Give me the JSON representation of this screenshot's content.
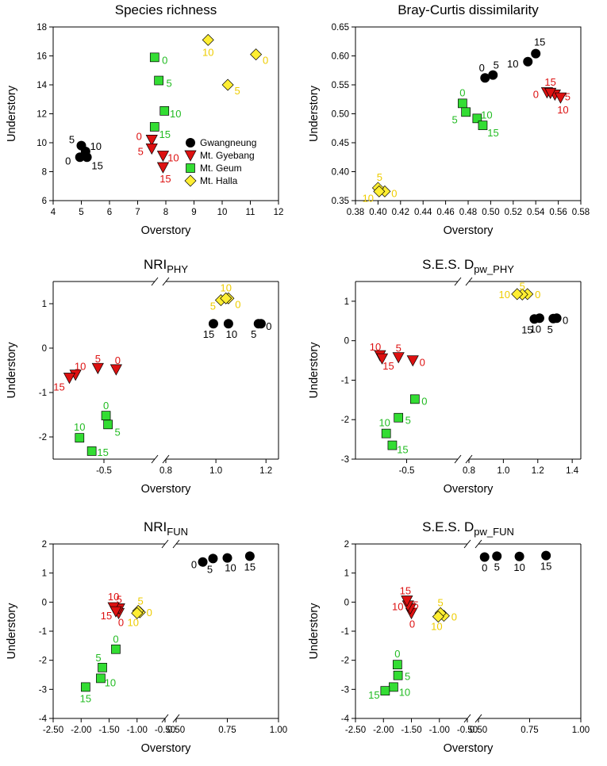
{
  "figure": {
    "series": [
      {
        "key": "gw",
        "name": "Gwangneung",
        "marker": "circle",
        "fill": "#000000",
        "label_color": "#000000"
      },
      {
        "key": "gy",
        "name": "Mt. Gyebang",
        "marker": "triangle",
        "fill": "#dd1111",
        "label_color": "#dd1111"
      },
      {
        "key": "ge",
        "name": "Mt. Geum",
        "marker": "square",
        "fill": "#33dd33",
        "label_color": "#22bb22"
      },
      {
        "key": "ha",
        "name": "Mt. Halla",
        "marker": "diamond",
        "fill": "#ffee33",
        "label_color": "#eecc00"
      }
    ],
    "legend_position": "lower-right"
  },
  "chart_data": [
    {
      "id": "species-richness",
      "type": "scatter",
      "title": "Species richness",
      "title_sub": "",
      "xlabel": "Overstory",
      "ylabel": "Understory",
      "xlim": [
        4,
        12
      ],
      "ylim": [
        6,
        18
      ],
      "xticks": [
        4,
        5,
        6,
        7,
        8,
        9,
        10,
        11,
        12
      ],
      "xtick_labels": [
        "4",
        "5",
        "6",
        "7",
        "8",
        "9",
        "10",
        "11",
        "12"
      ],
      "yticks": [
        6,
        8,
        10,
        12,
        14,
        16,
        18
      ],
      "ytick_labels": [
        "6",
        "8",
        "10",
        "12",
        "14",
        "16",
        "18"
      ],
      "legend": true,
      "series": [
        {
          "key": "gw",
          "points": [
            {
              "x": 4.95,
              "y": 9.0,
              "label": "0"
            },
            {
              "x": 5.0,
              "y": 9.8,
              "label": "5"
            },
            {
              "x": 5.15,
              "y": 9.4,
              "label": "10"
            },
            {
              "x": 5.2,
              "y": 9.0,
              "label": "15"
            }
          ]
        },
        {
          "key": "gy",
          "points": [
            {
              "x": 7.5,
              "y": 10.2,
              "label": "0"
            },
            {
              "x": 7.5,
              "y": 9.6,
              "label": "5"
            },
            {
              "x": 7.9,
              "y": 9.1,
              "label": "10"
            },
            {
              "x": 7.9,
              "y": 8.3,
              "label": "15"
            }
          ]
        },
        {
          "key": "ge",
          "points": [
            {
              "x": 7.6,
              "y": 15.9,
              "label": "0"
            },
            {
              "x": 7.75,
              "y": 14.3,
              "label": "5"
            },
            {
              "x": 7.95,
              "y": 12.2,
              "label": "10"
            },
            {
              "x": 7.6,
              "y": 11.1,
              "label": "15"
            }
          ]
        },
        {
          "key": "ha",
          "points": [
            {
              "x": 11.2,
              "y": 16.1,
              "label": "0"
            },
            {
              "x": 10.2,
              "y": 14.0,
              "label": "5"
            },
            {
              "x": 9.5,
              "y": 17.1,
              "label": "10"
            }
          ]
        }
      ]
    },
    {
      "id": "bray-curtis",
      "type": "scatter",
      "title": "Bray-Curtis dissimilarity",
      "title_sub": "",
      "xlabel": "Overstory",
      "ylabel": "Understory",
      "xlim": [
        0.38,
        0.58
      ],
      "ylim": [
        0.35,
        0.65
      ],
      "xticks": [
        0.38,
        0.4,
        0.42,
        0.44,
        0.46,
        0.48,
        0.5,
        0.52,
        0.54,
        0.56,
        0.58
      ],
      "xtick_labels": [
        "0.38",
        "0.40",
        "0.42",
        "0.44",
        "0.46",
        "0.48",
        "0.50",
        "0.52",
        "0.54",
        "0.56",
        "0.58"
      ],
      "yticks": [
        0.35,
        0.4,
        0.45,
        0.5,
        0.55,
        0.6,
        0.65
      ],
      "ytick_labels": [
        "0.35",
        "0.40",
        "0.45",
        "0.50",
        "0.55",
        "0.60",
        "0.65"
      ],
      "legend": false,
      "series": [
        {
          "key": "gw",
          "points": [
            {
              "x": 0.495,
              "y": 0.562,
              "label": "0"
            },
            {
              "x": 0.502,
              "y": 0.567,
              "label": "5"
            },
            {
              "x": 0.533,
              "y": 0.59,
              "label": "10"
            },
            {
              "x": 0.54,
              "y": 0.604,
              "label": "15"
            }
          ]
        },
        {
          "key": "gy",
          "points": [
            {
              "x": 0.55,
              "y": 0.537,
              "label": "0"
            },
            {
              "x": 0.557,
              "y": 0.533,
              "label": "5"
            },
            {
              "x": 0.562,
              "y": 0.528,
              "label": "10"
            },
            {
              "x": 0.553,
              "y": 0.536,
              "label": "15"
            }
          ]
        },
        {
          "key": "ge",
          "points": [
            {
              "x": 0.475,
              "y": 0.518,
              "label": "0"
            },
            {
              "x": 0.478,
              "y": 0.503,
              "label": "5"
            },
            {
              "x": 0.488,
              "y": 0.492,
              "label": "10"
            },
            {
              "x": 0.493,
              "y": 0.48,
              "label": "15"
            }
          ]
        },
        {
          "key": "ha",
          "points": [
            {
              "x": 0.406,
              "y": 0.366,
              "label": "0"
            },
            {
              "x": 0.4,
              "y": 0.372,
              "label": "5"
            },
            {
              "x": 0.401,
              "y": 0.366,
              "label": "10"
            }
          ]
        }
      ]
    },
    {
      "id": "nri-phy",
      "type": "scatter",
      "title": "NRI",
      "title_sub": "PHY",
      "xlabel": "Overstory",
      "ylabel": "Understory",
      "xbroken": true,
      "xlim_left": [
        -0.75,
        -0.25
      ],
      "xlim_right": [
        0.8,
        1.25
      ],
      "ylim": [
        -2.5,
        1.5
      ],
      "xticks_left": [
        -0.5
      ],
      "xtick_labels_left": [
        "-0.5"
      ],
      "xticks_right": [
        0.8,
        1.0,
        1.2
      ],
      "xtick_labels_right": [
        "0.8",
        "1.0",
        "1.2"
      ],
      "yticks": [
        -2,
        -1,
        0,
        1
      ],
      "ytick_labels": [
        "-2",
        "-1",
        "0",
        "1"
      ],
      "legend": false,
      "series": [
        {
          "key": "gw",
          "points": [
            {
              "x": 1.18,
              "y": 0.55,
              "label": "0"
            },
            {
              "x": 1.17,
              "y": 0.55,
              "label": "5"
            },
            {
              "x": 1.05,
              "y": 0.55,
              "label": "10"
            },
            {
              "x": 0.99,
              "y": 0.55,
              "label": "15"
            }
          ]
        },
        {
          "key": "gy",
          "points": [
            {
              "x": -0.44,
              "y": -0.48,
              "label": "0"
            },
            {
              "x": -0.53,
              "y": -0.45,
              "label": "5"
            },
            {
              "x": -0.64,
              "y": -0.6,
              "label": "10"
            },
            {
              "x": -0.67,
              "y": -0.67,
              "label": "15"
            }
          ]
        },
        {
          "key": "ge",
          "points": [
            {
              "x": -0.49,
              "y": -1.52,
              "label": "0"
            },
            {
              "x": -0.48,
              "y": -1.72,
              "label": "5"
            },
            {
              "x": -0.62,
              "y": -2.02,
              "label": "10"
            },
            {
              "x": -0.56,
              "y": -2.32,
              "label": "15"
            }
          ]
        },
        {
          "key": "ha",
          "points": [
            {
              "x": 1.05,
              "y": 1.12,
              "label": "0"
            },
            {
              "x": 1.02,
              "y": 1.08,
              "label": "5"
            },
            {
              "x": 1.04,
              "y": 1.12,
              "label": "10"
            }
          ]
        }
      ]
    },
    {
      "id": "ses-dpw-phy",
      "type": "scatter",
      "title": "S.E.S. D",
      "title_sub": "pw_PHY",
      "xlabel": "Overstory",
      "ylabel": "Understory",
      "xbroken": true,
      "xlim_left": [
        -0.75,
        -0.25
      ],
      "xlim_right": [
        0.8,
        1.45
      ],
      "ylim": [
        -3,
        1.5
      ],
      "xticks_left": [
        -0.5
      ],
      "xtick_labels_left": [
        "-0.5"
      ],
      "xticks_right": [
        0.8,
        1.0,
        1.2,
        1.4
      ],
      "xtick_labels_right": [
        "0.8",
        "1.0",
        "1.2",
        "1.4"
      ],
      "yticks": [
        -3,
        -2,
        -1,
        0,
        1
      ],
      "ytick_labels": [
        "-3",
        "-2",
        "-1",
        "0",
        "1"
      ],
      "legend": false,
      "series": [
        {
          "key": "gw",
          "points": [
            {
              "x": 1.31,
              "y": 0.57,
              "label": "0"
            },
            {
              "x": 1.29,
              "y": 0.56,
              "label": "5"
            },
            {
              "x": 1.21,
              "y": 0.57,
              "label": "10"
            },
            {
              "x": 1.18,
              "y": 0.55,
              "label": "15"
            }
          ]
        },
        {
          "key": "gy",
          "points": [
            {
              "x": -0.47,
              "y": -0.5,
              "label": "0"
            },
            {
              "x": -0.54,
              "y": -0.42,
              "label": "5"
            },
            {
              "x": -0.63,
              "y": -0.37,
              "label": "10"
            },
            {
              "x": -0.62,
              "y": -0.45,
              "label": "15"
            }
          ]
        },
        {
          "key": "ge",
          "points": [
            {
              "x": -0.46,
              "y": -1.48,
              "label": "0"
            },
            {
              "x": -0.54,
              "y": -1.95,
              "label": "5"
            },
            {
              "x": -0.6,
              "y": -2.35,
              "label": "10"
            },
            {
              "x": -0.57,
              "y": -2.65,
              "label": "15"
            }
          ]
        },
        {
          "key": "ha",
          "points": [
            {
              "x": 1.14,
              "y": 1.18,
              "label": "0"
            },
            {
              "x": 1.11,
              "y": 1.17,
              "label": "5"
            },
            {
              "x": 1.08,
              "y": 1.18,
              "label": "10"
            }
          ]
        }
      ]
    },
    {
      "id": "nri-fun",
      "type": "scatter",
      "title": "NRI",
      "title_sub": "FUN",
      "xlabel": "Overstory",
      "ylabel": "Understory",
      "xbroken": true,
      "xlim_left": [
        -2.5,
        -0.5
      ],
      "xlim_right": [
        0.5,
        1.0
      ],
      "ylim": [
        -4,
        2
      ],
      "xticks_left": [
        -2.5,
        -2.0,
        -1.5,
        -1.0,
        -0.5
      ],
      "xtick_labels_left": [
        "-2.50",
        "-2.00",
        "-1.50",
        "-1.00",
        "-0.50"
      ],
      "xticks_right": [
        0.5,
        0.75,
        1.0
      ],
      "xtick_labels_right": [
        "0.50",
        "0.75",
        "1.00"
      ],
      "yticks": [
        -4,
        -3,
        -2,
        -1,
        0,
        1,
        2
      ],
      "ytick_labels": [
        "-4",
        "-3",
        "-2",
        "-1",
        "0",
        "1",
        "2"
      ],
      "legend": false,
      "series": [
        {
          "key": "gw",
          "points": [
            {
              "x": 0.63,
              "y": 1.38,
              "label": "0"
            },
            {
              "x": 0.68,
              "y": 1.5,
              "label": "5"
            },
            {
              "x": 0.75,
              "y": 1.52,
              "label": "10"
            },
            {
              "x": 0.86,
              "y": 1.58,
              "label": "15"
            }
          ]
        },
        {
          "key": "gy",
          "points": [
            {
              "x": -1.33,
              "y": -0.38,
              "label": "0"
            },
            {
              "x": -1.32,
              "y": -0.22,
              "label": "5"
            },
            {
              "x": -1.42,
              "y": -0.18,
              "label": "10"
            },
            {
              "x": -1.38,
              "y": -0.32,
              "label": "15"
            }
          ]
        },
        {
          "key": "ge",
          "points": [
            {
              "x": -1.38,
              "y": -1.62,
              "label": "0"
            },
            {
              "x": -1.62,
              "y": -2.25,
              "label": "5"
            },
            {
              "x": -1.65,
              "y": -2.62,
              "label": "10"
            },
            {
              "x": -1.92,
              "y": -2.92,
              "label": "15"
            }
          ]
        },
        {
          "key": "ha",
          "points": [
            {
              "x": -0.95,
              "y": -0.35,
              "label": "0"
            },
            {
              "x": -0.98,
              "y": -0.3,
              "label": "5"
            },
            {
              "x": -1.0,
              "y": -0.38,
              "label": "10"
            }
          ]
        }
      ]
    },
    {
      "id": "ses-dpw-fun",
      "type": "scatter",
      "title": "S.E.S. D",
      "title_sub": "pw_FUN",
      "xlabel": "Overstory",
      "ylabel": "Understory",
      "xbroken": true,
      "xlim_left": [
        -2.5,
        -0.5
      ],
      "xlim_right": [
        0.5,
        1.0
      ],
      "ylim": [
        -4,
        2
      ],
      "xticks_left": [
        -2.5,
        -2.0,
        -1.5,
        -1.0,
        -0.5
      ],
      "xtick_labels_left": [
        "-2.50",
        "-2.00",
        "-1.50",
        "-1.00",
        "-0.50"
      ],
      "xticks_right": [
        0.5,
        0.75,
        1.0
      ],
      "xtick_labels_right": [
        "0.50",
        "0.75",
        "1.00"
      ],
      "yticks": [
        -4,
        -3,
        -2,
        -1,
        0,
        1,
        2
      ],
      "ytick_labels": [
        "-4",
        "-3",
        "-2",
        "-1",
        "0",
        "1",
        "2"
      ],
      "legend": false,
      "series": [
        {
          "key": "gw",
          "points": [
            {
              "x": 0.53,
              "y": 1.55,
              "label": "0"
            },
            {
              "x": 0.59,
              "y": 1.58,
              "label": "5"
            },
            {
              "x": 0.7,
              "y": 1.57,
              "label": "10"
            },
            {
              "x": 0.83,
              "y": 1.6,
              "label": "15"
            }
          ]
        },
        {
          "key": "gy",
          "points": [
            {
              "x": -1.5,
              "y": -0.38,
              "label": "0"
            },
            {
              "x": -1.52,
              "y": -0.22,
              "label": "5"
            },
            {
              "x": -1.56,
              "y": -0.12,
              "label": "10"
            },
            {
              "x": -1.58,
              "y": 0.05,
              "label": "15"
            }
          ]
        },
        {
          "key": "ge",
          "points": [
            {
              "x": -1.75,
              "y": -2.15,
              "label": "0"
            },
            {
              "x": -1.74,
              "y": -2.52,
              "label": "5"
            },
            {
              "x": -1.82,
              "y": -2.92,
              "label": "10"
            },
            {
              "x": -1.97,
              "y": -3.05,
              "label": "15"
            }
          ]
        },
        {
          "key": "ha",
          "points": [
            {
              "x": -0.92,
              "y": -0.47,
              "label": "0"
            },
            {
              "x": -0.98,
              "y": -0.38,
              "label": "5"
            },
            {
              "x": -1.02,
              "y": -0.5,
              "label": "10"
            }
          ]
        }
      ]
    }
  ]
}
